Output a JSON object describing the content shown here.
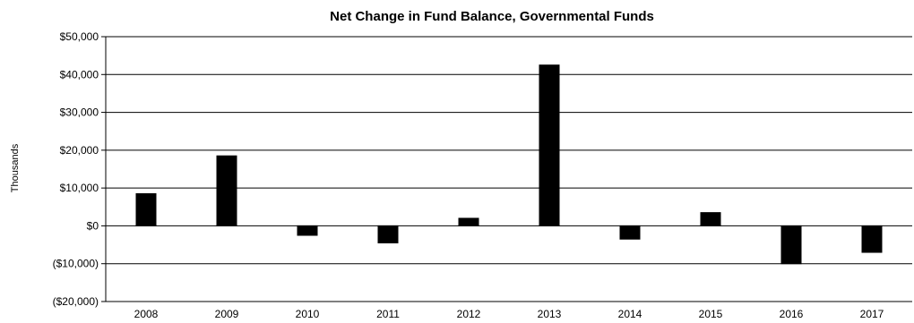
{
  "chart_data": {
    "type": "bar",
    "title": "Net Change in Fund Balance, Governmental Funds",
    "xlabel": "",
    "ylabel": "Thousands",
    "categories": [
      "2008",
      "2009",
      "2010",
      "2011",
      "2012",
      "2013",
      "2014",
      "2015",
      "2016",
      "2017"
    ],
    "values": [
      8500,
      18500,
      -2500,
      -4500,
      2000,
      42500,
      -3500,
      3500,
      -10000,
      -7000
    ],
    "ylim": [
      -20000,
      50000
    ],
    "yticks": [
      50000,
      40000,
      30000,
      20000,
      10000,
      0,
      -10000,
      -20000
    ],
    "ytick_labels": [
      "$50,000",
      "$40,000",
      "$30,000",
      "$20,000",
      "$10,000",
      "$0",
      "($10,000)",
      "($20,000)"
    ],
    "grid": true,
    "legend": "none",
    "bar_color": "#000000"
  }
}
